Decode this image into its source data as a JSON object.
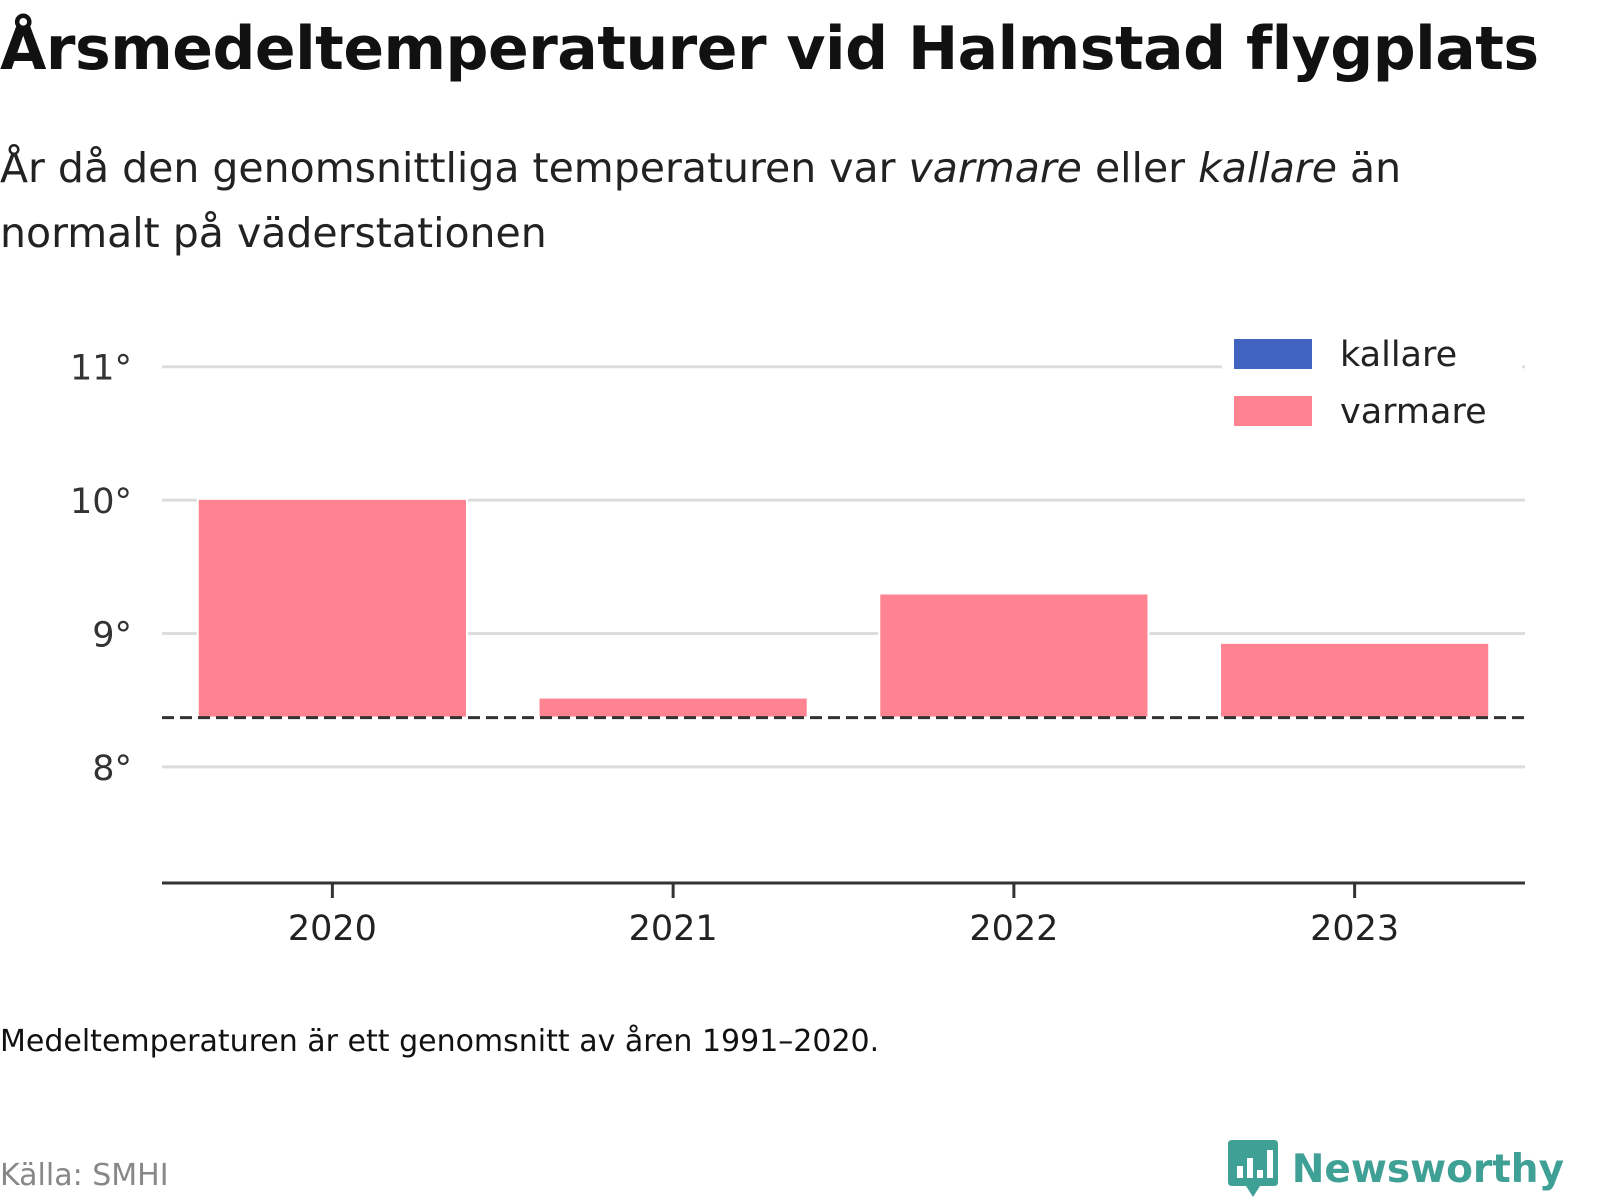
{
  "title": "Årsmedeltemperaturer vid Halmstad flygplats",
  "subtitle": {
    "part1": "År då den genomsnittliga temperaturen var ",
    "warmer": "varmare",
    "part2": " eller ",
    "colder": "kallare",
    "part3": " än normalt på väderstationen"
  },
  "note": "Medeltemperaturen är ett genomsnitt av åren 1991–2020.",
  "source": "Källa: SMHI",
  "brand": "Newsworthy",
  "colors": {
    "warmer": "#ff8391",
    "colder": "#4163c0",
    "grid": "#dddddd",
    "axis": "#333333",
    "brand": "#3fa095"
  },
  "chart_data": {
    "type": "bar",
    "categories": [
      "2020",
      "2021",
      "2022",
      "2023"
    ],
    "values": [
      10.01,
      8.52,
      9.3,
      8.93
    ],
    "baseline": 8.37,
    "series": [
      {
        "name": "kallare",
        "color": "#4163c0"
      },
      {
        "name": "varmare",
        "color": "#ff8391"
      }
    ],
    "ylim": [
      7.13,
      11.5
    ],
    "yticks": [
      8,
      9,
      10,
      11
    ],
    "ytick_labels": [
      "8°",
      "9°",
      "10°",
      "11°"
    ],
    "xlabel": "",
    "ylabel": "",
    "grid": true,
    "legend_position": "top-right"
  }
}
